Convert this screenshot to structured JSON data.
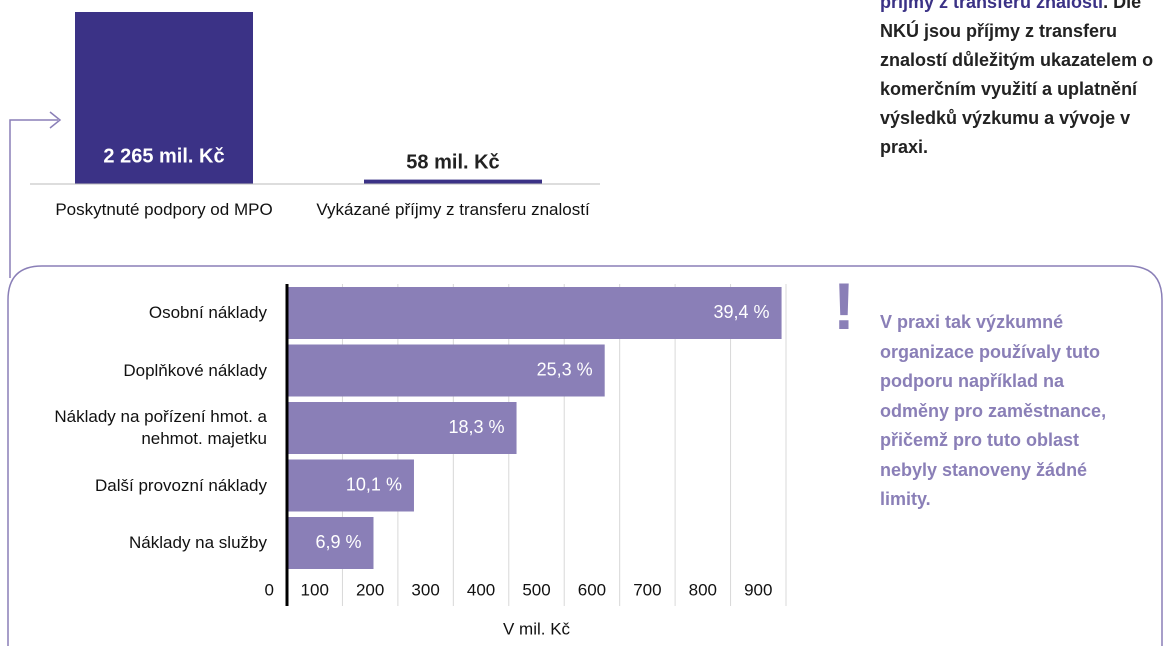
{
  "chart_data": [
    {
      "type": "bar",
      "categories": [
        "Poskytnuté podpory od MPO",
        "Vykázané příjmy z transferu znalostí"
      ],
      "values": [
        2265,
        58
      ],
      "value_labels": [
        "2 265 mil. Kč",
        "58 mil. Kč"
      ],
      "color": "#3b3286"
    },
    {
      "type": "hbar",
      "categories": [
        "Osobní náklady",
        "Doplňkové náklady",
        "Náklady na pořízení hmot. a nehmot. majetku",
        "Další provozní náklady",
        "Náklady na služby"
      ],
      "values": [
        892,
        573,
        414,
        229,
        156
      ],
      "share_labels": [
        "39,4 %",
        "25,3 %",
        "18,3 %",
        "10,1 %",
        "6,9 %"
      ],
      "color": "#8a7fb7",
      "xlabel": "V mil. Kč",
      "xlim": [
        0,
        900
      ],
      "xticks": [
        0,
        100,
        200,
        300,
        400,
        500,
        600,
        700,
        800,
        900
      ],
      "grid": true
    }
  ],
  "note": {
    "highlight": "příjmy z transferu znalostí",
    "text": ". Dle NKÚ jsou příjmy z transferu znalostí důležitým ukazatelem o komerčním využití a uplatnění výsledků výzkumu a vývoje v praxi."
  },
  "callout": {
    "icon": "!",
    "text": "V praxi tak výzkumné organizace používaly tuto podporu například na odměny pro zaměstnance, přičemž pro tuto oblast nebyly stanoveny žádné limity."
  }
}
